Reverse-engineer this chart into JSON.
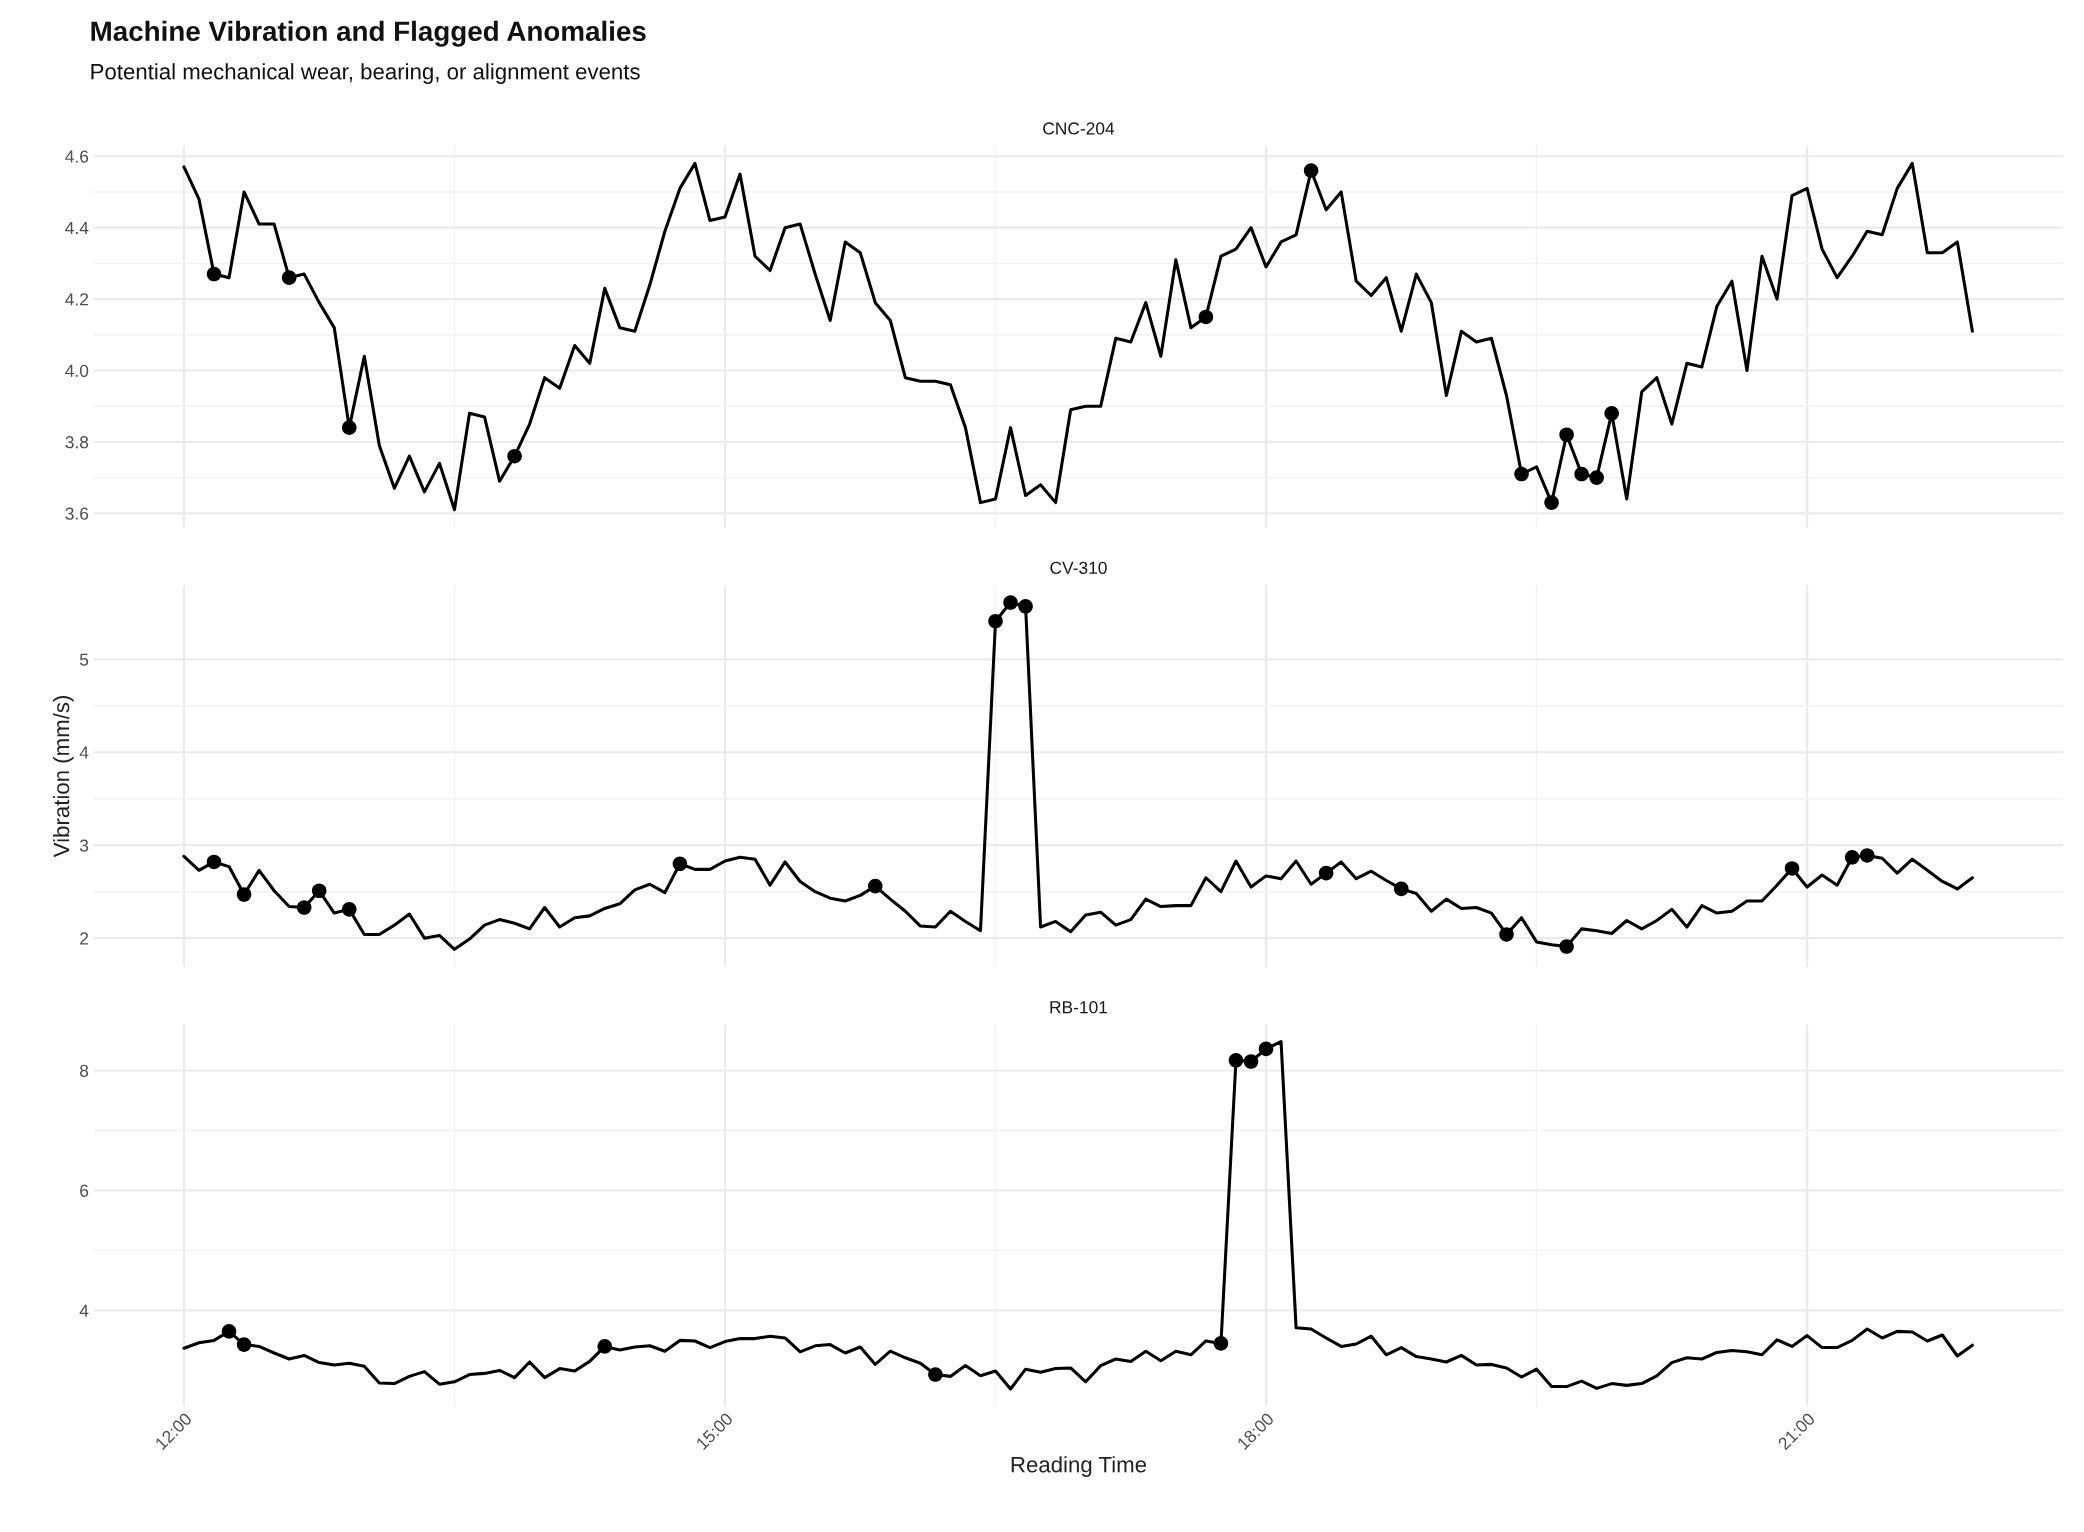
{
  "chart_data": [
    {
      "type": "line",
      "title": "CNC-204",
      "annotations": [
        "Machine Vibration and Flagged Anomalies",
        "Potential mechanical wear, bearing, or alignment events"
      ],
      "x": [
        12,
        12.0833,
        12.1667,
        12.25,
        12.3333,
        12.4167,
        12.5,
        12.5833,
        12.6667,
        12.75,
        12.8333,
        12.9167,
        13,
        13.0833,
        13.1667,
        13.25,
        13.3333,
        13.4167,
        13.5,
        13.5833,
        13.6667,
        13.75,
        13.8333,
        13.9167,
        14,
        14.0833,
        14.1667,
        14.25,
        14.3333,
        14.4167,
        14.5,
        14.5833,
        14.6667,
        14.75,
        14.8333,
        14.9167,
        15,
        15.0833,
        15.1667,
        15.25,
        15.3333,
        15.4167,
        15.5,
        15.5833,
        15.6667,
        15.75,
        15.8333,
        15.9167,
        16,
        16.0833,
        16.1667,
        16.25,
        16.3333,
        16.4167,
        16.5,
        16.5833,
        16.6667,
        16.75,
        16.8333,
        16.9167,
        17,
        17.0833,
        17.1667,
        17.25,
        17.3333,
        17.4167,
        17.5,
        17.5833,
        17.6667,
        17.75,
        17.8333,
        17.9167,
        18,
        18.0833,
        18.1667,
        18.25,
        18.3333,
        18.4167,
        18.5,
        18.5833,
        18.6667,
        18.75,
        18.8333,
        18.9167,
        19,
        19.0833,
        19.1667,
        19.25,
        19.3333,
        19.4167,
        19.5,
        19.5833,
        19.6667,
        19.75,
        19.8333,
        19.9167,
        20,
        20.0833,
        20.1667,
        20.25,
        20.3333,
        20.4167,
        20.5,
        20.5833,
        20.6667,
        20.75,
        20.8333,
        20.9167,
        21,
        21.0833,
        21.1667,
        21.25,
        21.3333,
        21.4167,
        21.5,
        21.5833,
        21.6667,
        21.75,
        21.8333,
        21.9167
      ],
      "series": [
        {
          "color": "#000000",
          "values": [
            4.57,
            4.48,
            4.27,
            4.26,
            4.5,
            4.41,
            4.41,
            4.26,
            4.27,
            4.19,
            4.12,
            3.84,
            4.04,
            3.79,
            3.67,
            3.76,
            3.66,
            3.74,
            3.61,
            3.88,
            3.87,
            3.69,
            3.76,
            3.85,
            3.98,
            3.95,
            4.07,
            4.02,
            4.23,
            4.12,
            4.11,
            4.24,
            4.39,
            4.51,
            4.58,
            4.42,
            4.43,
            4.55,
            4.32,
            4.28,
            4.4,
            4.41,
            4.27,
            4.14,
            4.36,
            4.33,
            4.19,
            4.14,
            3.98,
            3.97,
            3.97,
            3.96,
            3.84,
            3.63,
            3.64,
            3.84,
            3.65,
            3.68,
            3.63,
            3.89,
            3.9,
            3.9,
            4.09,
            4.08,
            4.19,
            4.04,
            4.31,
            4.12,
            4.15,
            4.32,
            4.34,
            4.4,
            4.29,
            4.36,
            4.38,
            4.56,
            4.45,
            4.5,
            4.25,
            4.21,
            4.26,
            4.11,
            4.27,
            4.19,
            3.93,
            4.11,
            4.08,
            4.09,
            3.93,
            3.71,
            3.73,
            3.63,
            3.82,
            3.71,
            3.7,
            3.88,
            3.64,
            3.94,
            3.98,
            3.85,
            4.02,
            4.01,
            4.18,
            4.25,
            4.0,
            4.32,
            4.2,
            4.49,
            4.51,
            4.34,
            4.26,
            4.32,
            4.39,
            4.38,
            4.51,
            4.58,
            4.33,
            4.33,
            4.36,
            4.11
          ]
        },
        {
          "type": "scatter",
          "marker": "circle",
          "color": "#000000",
          "x": [
            12.1667,
            12.5833,
            12.9167,
            13.8333,
            17.6667,
            18.25,
            19.4167,
            19.5833,
            19.6667,
            19.75,
            19.8333,
            19.9167
          ],
          "values": [
            4.27,
            4.26,
            3.84,
            3.76,
            4.15,
            4.56,
            3.71,
            3.63,
            3.82,
            3.71,
            3.7,
            3.88
          ]
        }
      ],
      "line_style": "solid",
      "grid": true,
      "tick_labels": "y",
      "xlim": [
        11.5,
        22.42
      ],
      "xticks": [
        {
          "value": 12,
          "label": null
        },
        {
          "value": 15,
          "label": null
        },
        {
          "value": 18,
          "label": null
        },
        {
          "value": 21,
          "label": null
        }
      ],
      "ylim": [
        3.56,
        4.63
      ],
      "yticks": [
        {
          "value": 3.6,
          "label": "3.6"
        },
        {
          "value": 3.8,
          "label": "3.8"
        },
        {
          "value": 4.0,
          "label": "4.0"
        },
        {
          "value": 4.2,
          "label": "4.2"
        },
        {
          "value": 4.4,
          "label": "4.4"
        },
        {
          "value": 4.6,
          "label": "4.6"
        }
      ]
    },
    {
      "type": "line",
      "title": "CV-310",
      "ylabel": "Vibration (mm/s)",
      "x": [
        12,
        12.0833,
        12.1667,
        12.25,
        12.3333,
        12.4167,
        12.5,
        12.5833,
        12.6667,
        12.75,
        12.8333,
        12.9167,
        13,
        13.0833,
        13.1667,
        13.25,
        13.3333,
        13.4167,
        13.5,
        13.5833,
        13.6667,
        13.75,
        13.8333,
        13.9167,
        14,
        14.0833,
        14.1667,
        14.25,
        14.3333,
        14.4167,
        14.5,
        14.5833,
        14.6667,
        14.75,
        14.8333,
        14.9167,
        15,
        15.0833,
        15.1667,
        15.25,
        15.3333,
        15.4167,
        15.5,
        15.5833,
        15.6667,
        15.75,
        15.8333,
        15.9167,
        16,
        16.0833,
        16.1667,
        16.25,
        16.3333,
        16.4167,
        16.5,
        16.5833,
        16.6667,
        16.75,
        16.8333,
        16.9167,
        17,
        17.0833,
        17.1667,
        17.25,
        17.3333,
        17.4167,
        17.5,
        17.5833,
        17.6667,
        17.75,
        17.8333,
        17.9167,
        18,
        18.0833,
        18.1667,
        18.25,
        18.3333,
        18.4167,
        18.5,
        18.5833,
        18.6667,
        18.75,
        18.8333,
        18.9167,
        19,
        19.0833,
        19.1667,
        19.25,
        19.3333,
        19.4167,
        19.5,
        19.5833,
        19.6667,
        19.75,
        19.8333,
        19.9167,
        20,
        20.0833,
        20.1667,
        20.25,
        20.3333,
        20.4167,
        20.5,
        20.5833,
        20.6667,
        20.75,
        20.8333,
        20.9167,
        21,
        21.0833,
        21.1667,
        21.25,
        21.3333,
        21.4167,
        21.5,
        21.5833,
        21.6667,
        21.75,
        21.8333,
        21.9167
      ],
      "series": [
        {
          "color": "#000000",
          "values": [
            2.88,
            2.73,
            2.82,
            2.77,
            2.47,
            2.73,
            2.51,
            2.34,
            2.33,
            2.51,
            2.27,
            2.31,
            2.04,
            2.04,
            2.14,
            2.26,
            2.0,
            2.03,
            1.88,
            1.99,
            2.14,
            2.2,
            2.16,
            2.1,
            2.33,
            2.12,
            2.22,
            2.24,
            2.32,
            2.37,
            2.52,
            2.58,
            2.49,
            2.8,
            2.74,
            2.74,
            2.83,
            2.87,
            2.85,
            2.57,
            2.82,
            2.61,
            2.5,
            2.43,
            2.4,
            2.46,
            2.56,
            2.42,
            2.29,
            2.13,
            2.12,
            2.29,
            2.18,
            2.08,
            5.41,
            5.61,
            5.57,
            2.12,
            2.18,
            2.07,
            2.25,
            2.28,
            2.14,
            2.2,
            2.42,
            2.34,
            2.35,
            2.35,
            2.65,
            2.5,
            2.83,
            2.55,
            2.67,
            2.64,
            2.83,
            2.58,
            2.7,
            2.82,
            2.64,
            2.72,
            2.62,
            2.53,
            2.48,
            2.29,
            2.42,
            2.32,
            2.33,
            2.27,
            2.04,
            2.22,
            1.96,
            1.93,
            1.91,
            2.1,
            2.08,
            2.05,
            2.19,
            2.1,
            2.19,
            2.31,
            2.12,
            2.35,
            2.27,
            2.29,
            2.4,
            2.4,
            2.57,
            2.75,
            2.55,
            2.68,
            2.57,
            2.87,
            2.89,
            2.86,
            2.7,
            2.85,
            2.73,
            2.61,
            2.53,
            2.65
          ]
        },
        {
          "type": "scatter",
          "marker": "circle",
          "color": "#000000",
          "x": [
            12.1667,
            12.3333,
            12.6667,
            12.75,
            12.9167,
            14.75,
            15.8333,
            16.5,
            16.5833,
            16.6667,
            18.3333,
            18.75,
            19.3333,
            19.6667,
            20.9167,
            21.25,
            21.3333
          ],
          "values": [
            2.82,
            2.47,
            2.33,
            2.51,
            2.31,
            2.8,
            2.56,
            5.41,
            5.61,
            5.57,
            2.7,
            2.53,
            2.04,
            1.91,
            2.75,
            2.87,
            2.89
          ]
        }
      ],
      "line_style": "solid",
      "grid": true,
      "tick_labels": "y",
      "xlim": [
        11.5,
        22.42
      ],
      "xticks": [
        {
          "value": 12,
          "label": null
        },
        {
          "value": 15,
          "label": null
        },
        {
          "value": 18,
          "label": null
        },
        {
          "value": 21,
          "label": null
        }
      ],
      "ylim": [
        1.69,
        5.8
      ],
      "yticks": [
        2,
        3,
        4,
        5
      ]
    },
    {
      "type": "line",
      "title": "RB-101",
      "xlabel": "Reading Time",
      "x": [
        12,
        12.0833,
        12.1667,
        12.25,
        12.3333,
        12.4167,
        12.5,
        12.5833,
        12.6667,
        12.75,
        12.8333,
        12.9167,
        13,
        13.0833,
        13.1667,
        13.25,
        13.3333,
        13.4167,
        13.5,
        13.5833,
        13.6667,
        13.75,
        13.8333,
        13.9167,
        14,
        14.0833,
        14.1667,
        14.25,
        14.3333,
        14.4167,
        14.5,
        14.5833,
        14.6667,
        14.75,
        14.8333,
        14.9167,
        15,
        15.0833,
        15.1667,
        15.25,
        15.3333,
        15.4167,
        15.5,
        15.5833,
        15.6667,
        15.75,
        15.8333,
        15.9167,
        16,
        16.0833,
        16.1667,
        16.25,
        16.3333,
        16.4167,
        16.5,
        16.5833,
        16.6667,
        16.75,
        16.8333,
        16.9167,
        17,
        17.0833,
        17.1667,
        17.25,
        17.3333,
        17.4167,
        17.5,
        17.5833,
        17.6667,
        17.75,
        17.8333,
        17.9167,
        18,
        18.0833,
        18.1667,
        18.25,
        18.3333,
        18.4167,
        18.5,
        18.5833,
        18.6667,
        18.75,
        18.8333,
        18.9167,
        19,
        19.0833,
        19.1667,
        19.25,
        19.3333,
        19.4167,
        19.5,
        19.5833,
        19.6667,
        19.75,
        19.8333,
        19.9167,
        20,
        20.0833,
        20.1667,
        20.25,
        20.3333,
        20.4167,
        20.5,
        20.5833,
        20.6667,
        20.75,
        20.8333,
        20.9167,
        21,
        21.0833,
        21.1667,
        21.25,
        21.3333,
        21.4167,
        21.5,
        21.5833,
        21.6667,
        21.75,
        21.8333,
        21.9167
      ],
      "series": [
        {
          "color": "#000000",
          "values": [
            3.37,
            3.46,
            3.5,
            3.65,
            3.43,
            3.4,
            3.29,
            3.19,
            3.25,
            3.13,
            3.09,
            3.12,
            3.07,
            2.79,
            2.78,
            2.9,
            2.98,
            2.77,
            2.81,
            2.93,
            2.95,
            3.0,
            2.88,
            3.14,
            2.88,
            3.03,
            2.99,
            3.15,
            3.4,
            3.34,
            3.39,
            3.41,
            3.32,
            3.5,
            3.49,
            3.38,
            3.48,
            3.53,
            3.53,
            3.57,
            3.54,
            3.31,
            3.41,
            3.43,
            3.29,
            3.39,
            3.1,
            3.32,
            3.21,
            3.12,
            2.93,
            2.9,
            3.08,
            2.91,
            2.99,
            2.69,
            3.02,
            2.97,
            3.03,
            3.04,
            2.81,
            3.08,
            3.19,
            3.15,
            3.32,
            3.16,
            3.32,
            3.26,
            3.49,
            3.45,
            8.17,
            8.15,
            8.36,
            8.48,
            3.71,
            3.69,
            3.54,
            3.4,
            3.44,
            3.57,
            3.26,
            3.38,
            3.23,
            3.19,
            3.14,
            3.25,
            3.09,
            3.1,
            3.04,
            2.89,
            3.02,
            2.73,
            2.73,
            2.82,
            2.7,
            2.78,
            2.75,
            2.78,
            2.91,
            3.13,
            3.21,
            3.19,
            3.3,
            3.33,
            3.31,
            3.26,
            3.51,
            3.4,
            3.58,
            3.38,
            3.38,
            3.5,
            3.69,
            3.54,
            3.65,
            3.64,
            3.49,
            3.59,
            3.24,
            3.42
          ]
        },
        {
          "type": "scatter",
          "marker": "circle",
          "color": "#000000",
          "x": [
            12.25,
            12.3333,
            14.3333,
            16.1667,
            17.75,
            17.8333,
            17.9167,
            18.0
          ],
          "values": [
            3.65,
            3.43,
            3.4,
            2.93,
            3.45,
            8.17,
            8.15,
            8.36
          ]
        }
      ],
      "line_style": "solid",
      "grid": true,
      "xlim": [
        11.5,
        22.42
      ],
      "xticks": [
        {
          "value": 12,
          "label": "12:00"
        },
        {
          "value": 15,
          "label": "15:00"
        },
        {
          "value": 18,
          "label": "18:00"
        },
        {
          "value": 21,
          "label": "21:00"
        }
      ],
      "ylim": [
        2.4,
        8.77
      ],
      "yticks": [
        4,
        6,
        8
      ]
    }
  ]
}
